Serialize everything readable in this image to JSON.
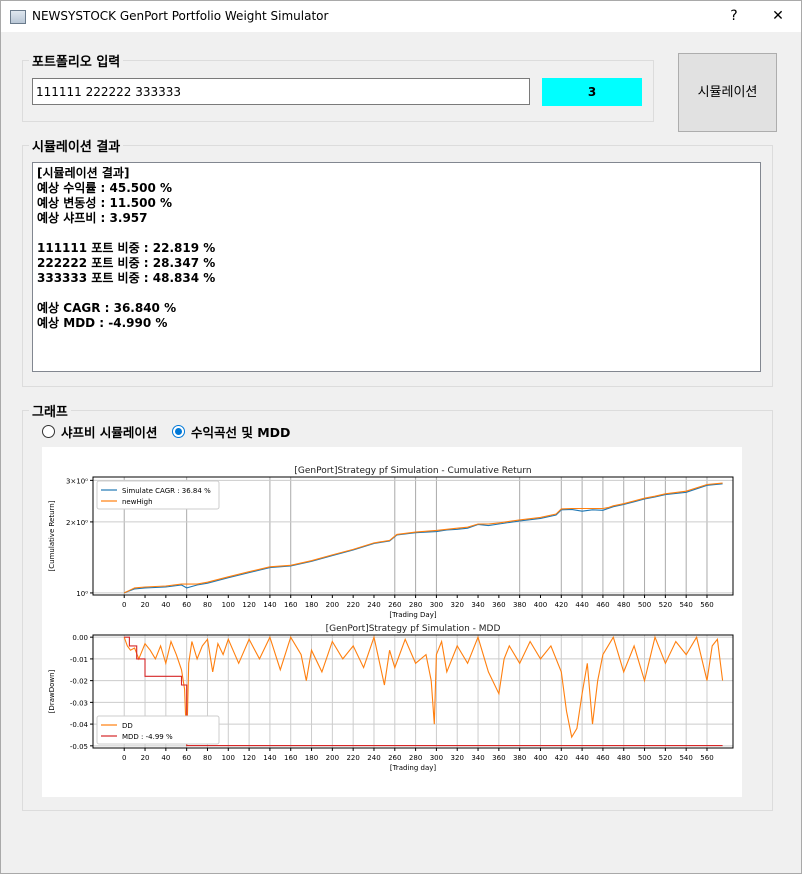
{
  "window": {
    "title": "NEWSYSTOCK GenPort Portfolio Weight Simulator",
    "help_label": "?",
    "close_label": "✕"
  },
  "portfolio_input": {
    "group_title": "포트폴리오 입력",
    "value": "111111 222222 333333",
    "count": "3",
    "simulate_label": "시뮬레이션"
  },
  "results": {
    "group_title": "시뮬레이션 결과",
    "lines": [
      "[시뮬레이션 결과]",
      "예상 수익률 : 45.500 %",
      "예상 변동성 : 11.500 %",
      "예상 샤프비 : 3.957",
      "",
      "111111 포트 비중 : 22.819 %",
      "222222 포트 비중 : 28.347 %",
      "333333 포트 비중 : 48.834 %",
      "",
      "예상 CAGR : 36.840 %",
      "예상 MDD : -4.990 %"
    ]
  },
  "graph": {
    "group_title": "그래프",
    "radio_options": [
      {
        "label": "샤프비 시뮬레이션",
        "checked": false
      },
      {
        "label": "수익곡선 및 MDD",
        "checked": true
      }
    ]
  },
  "colors": {
    "accent_cyan": "#00ffff",
    "radio_blue": "#0078d7",
    "series_blue": "#1f77b4",
    "series_orange": "#ff7f0e",
    "series_red": "#d62728"
  },
  "chart_data": [
    {
      "type": "line",
      "title": "[GenPort]Strategy pf Simulation - Cumulative Return",
      "xlabel": "[Trading Day]",
      "ylabel": "[Cumulative Return]",
      "yscale": "log",
      "xlim": [
        -30,
        585
      ],
      "ylim": [
        0.98,
        3.1
      ],
      "x_ticks": [
        0,
        20,
        40,
        60,
        80,
        100,
        120,
        140,
        160,
        180,
        200,
        220,
        240,
        260,
        280,
        300,
        320,
        340,
        360,
        380,
        400,
        420,
        440,
        460,
        480,
        500,
        520,
        540,
        560
      ],
      "y_ticks": [
        {
          "value": 1,
          "label": "10⁰"
        },
        {
          "value": 2,
          "label": "2×10⁰"
        },
        {
          "value": 3,
          "label": "3×10⁰"
        }
      ],
      "vlines": [
        0,
        60,
        140,
        160,
        260,
        280,
        300,
        380,
        420,
        440,
        460,
        480,
        500,
        520,
        540,
        560
      ],
      "legend_position": "upper-left",
      "series": [
        {
          "name": "Simulate CAGR : 36.84 %",
          "color": "#1f77b4",
          "x": [
            0,
            10,
            20,
            40,
            55,
            60,
            70,
            80,
            100,
            120,
            140,
            160,
            180,
            200,
            220,
            240,
            255,
            262,
            280,
            300,
            310,
            320,
            330,
            340,
            350,
            360,
            380,
            400,
            415,
            420,
            430,
            440,
            450,
            460,
            465,
            470,
            480,
            500,
            510,
            520,
            540,
            560,
            575
          ],
          "y": [
            1.0,
            1.04,
            1.05,
            1.06,
            1.08,
            1.05,
            1.08,
            1.1,
            1.16,
            1.22,
            1.28,
            1.3,
            1.36,
            1.44,
            1.52,
            1.62,
            1.66,
            1.76,
            1.8,
            1.82,
            1.85,
            1.86,
            1.88,
            1.95,
            1.93,
            1.96,
            2.02,
            2.07,
            2.14,
            2.25,
            2.26,
            2.22,
            2.25,
            2.24,
            2.28,
            2.32,
            2.37,
            2.5,
            2.55,
            2.61,
            2.67,
            2.86,
            2.9
          ]
        },
        {
          "name": "newHigh",
          "color": "#ff7f0e",
          "x": [
            0,
            10,
            20,
            40,
            55,
            60,
            70,
            80,
            100,
            120,
            140,
            160,
            180,
            200,
            220,
            240,
            255,
            262,
            280,
            300,
            310,
            320,
            330,
            340,
            350,
            360,
            380,
            400,
            415,
            420,
            430,
            440,
            450,
            460,
            465,
            470,
            480,
            500,
            510,
            520,
            540,
            560,
            575
          ],
          "y": [
            1.0,
            1.05,
            1.06,
            1.07,
            1.09,
            1.09,
            1.09,
            1.11,
            1.17,
            1.23,
            1.29,
            1.31,
            1.37,
            1.45,
            1.53,
            1.63,
            1.67,
            1.77,
            1.81,
            1.84,
            1.86,
            1.88,
            1.9,
            1.96,
            1.96,
            1.98,
            2.04,
            2.09,
            2.16,
            2.27,
            2.28,
            2.28,
            2.28,
            2.28,
            2.3,
            2.34,
            2.39,
            2.52,
            2.57,
            2.63,
            2.7,
            2.88,
            2.92
          ]
        }
      ]
    },
    {
      "type": "line",
      "title": "[GenPort]Strategy pf Simulation - MDD",
      "xlabel": "[Trading day]",
      "ylabel": "[DrawDown]",
      "xlim": [
        -30,
        585
      ],
      "ylim": [
        -0.051,
        0.001
      ],
      "x_ticks": [
        0,
        20,
        40,
        60,
        80,
        100,
        120,
        140,
        160,
        180,
        200,
        220,
        240,
        260,
        280,
        300,
        320,
        340,
        360,
        380,
        400,
        420,
        440,
        460,
        480,
        500,
        520,
        540,
        560
      ],
      "y_ticks": [
        0.0,
        -0.01,
        -0.02,
        -0.03,
        -0.04,
        -0.05
      ],
      "legend_position": "lower-left",
      "series": [
        {
          "name": "DD",
          "color": "#ff7f0e",
          "x": [
            0,
            3,
            6,
            10,
            14,
            20,
            25,
            30,
            35,
            40,
            45,
            50,
            55,
            58,
            60,
            62,
            65,
            70,
            75,
            80,
            85,
            90,
            95,
            100,
            110,
            120,
            130,
            140,
            150,
            160,
            170,
            175,
            180,
            190,
            200,
            210,
            220,
            230,
            240,
            250,
            255,
            260,
            270,
            280,
            290,
            295,
            298,
            300,
            305,
            310,
            320,
            330,
            340,
            350,
            360,
            365,
            370,
            380,
            390,
            400,
            410,
            420,
            425,
            430,
            435,
            440,
            445,
            450,
            455,
            460,
            470,
            480,
            490,
            500,
            510,
            520,
            530,
            540,
            550,
            560,
            565,
            570,
            575
          ],
          "y": [
            0,
            -0.004,
            -0.006,
            -0.005,
            -0.01,
            -0.003,
            -0.006,
            -0.01,
            -0.004,
            -0.012,
            -0.002,
            -0.008,
            -0.015,
            -0.024,
            -0.05,
            -0.012,
            -0.002,
            -0.01,
            -0.004,
            -0.001,
            -0.016,
            -0.003,
            -0.008,
            -0.001,
            -0.012,
            -0.001,
            -0.01,
            0,
            -0.015,
            0,
            -0.008,
            -0.02,
            -0.006,
            -0.016,
            -0.002,
            -0.01,
            -0.004,
            -0.014,
            0,
            -0.022,
            -0.006,
            -0.014,
            -0.001,
            -0.012,
            -0.008,
            -0.02,
            -0.04,
            -0.008,
            -0.002,
            -0.016,
            -0.004,
            -0.012,
            0,
            -0.016,
            -0.026,
            -0.01,
            -0.004,
            -0.012,
            -0.002,
            -0.01,
            -0.004,
            -0.016,
            -0.034,
            -0.046,
            -0.042,
            -0.026,
            -0.012,
            -0.04,
            -0.02,
            -0.008,
            0,
            -0.016,
            -0.004,
            -0.02,
            0,
            -0.012,
            -0.002,
            -0.008,
            0,
            -0.02,
            -0.004,
            -0.001,
            -0.02
          ]
        },
        {
          "name": "MDD : -4.99 %",
          "color": "#d62728",
          "x": [
            0,
            5,
            5,
            12,
            12,
            20,
            20,
            55,
            55,
            60,
            60,
            65,
            575
          ],
          "y": [
            0,
            0,
            -0.004,
            -0.004,
            -0.01,
            -0.01,
            -0.018,
            -0.018,
            -0.022,
            -0.022,
            -0.0499,
            -0.0499,
            -0.0499
          ]
        }
      ]
    }
  ]
}
